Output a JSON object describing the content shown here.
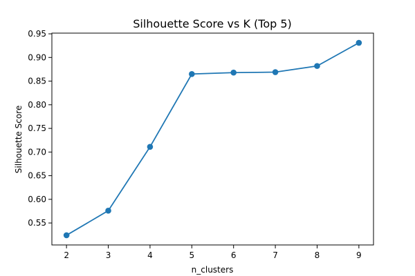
{
  "chart_data": {
    "type": "line",
    "title": "Silhouette Score vs K (Top 5)",
    "xlabel": "n_clusters",
    "ylabel": "Silhouette Score",
    "x": [
      2,
      3,
      4,
      5,
      6,
      7,
      8,
      9
    ],
    "series": [
      {
        "values": [
          0.524,
          0.576,
          0.711,
          0.865,
          0.868,
          0.869,
          0.882,
          0.931
        ],
        "color": "#1f77b4",
        "marker": "circle"
      }
    ],
    "xticks": [
      "2",
      "3",
      "4",
      "5",
      "6",
      "7",
      "8",
      "9"
    ],
    "yticks": [
      "0.55",
      "0.60",
      "0.65",
      "0.70",
      "0.75",
      "0.80",
      "0.85",
      "0.90",
      "0.95"
    ],
    "xlim": [
      1.65,
      9.35
    ],
    "ylim": [
      0.5035,
      0.9515
    ],
    "grid": false
  }
}
